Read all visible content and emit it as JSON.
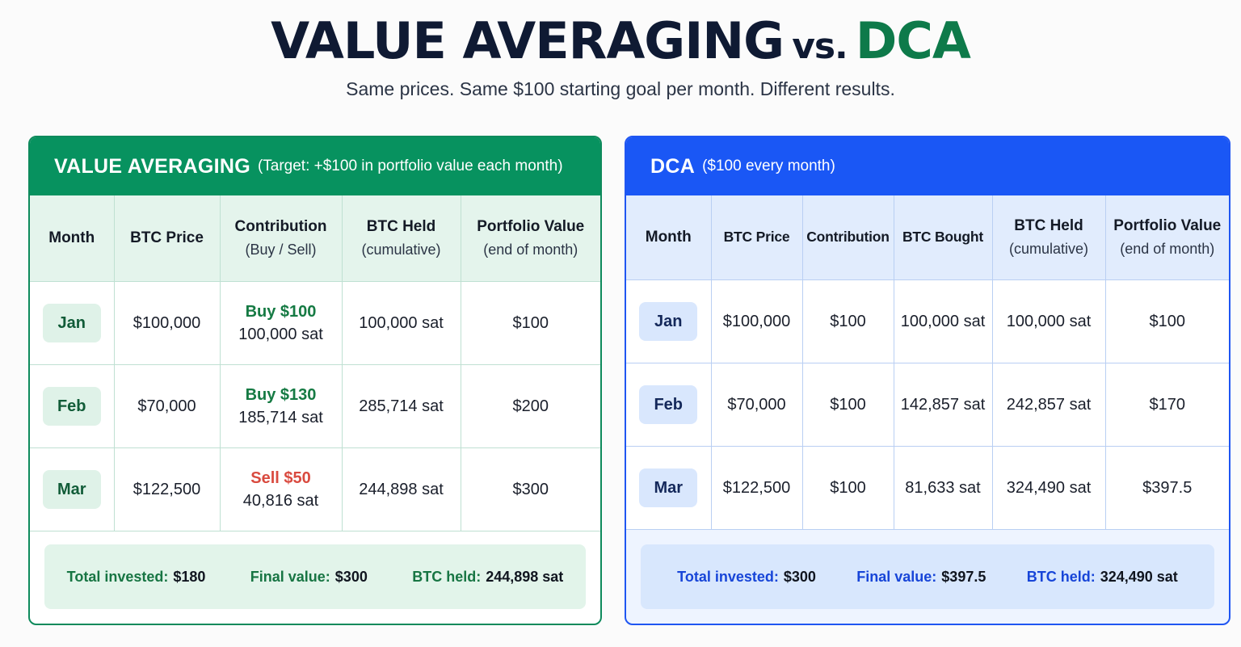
{
  "title": {
    "main": "VALUE AVERAGING",
    "vs": "vs.",
    "dca": "DCA",
    "dca_color": "#0e7a4a"
  },
  "subtitle": "Same prices. Same $100 starting goal per month. Different results.",
  "value_averaging": {
    "header": "VALUE AVERAGING",
    "header_note": "(Target: +$100 in portfolio value each month)",
    "accent_color": "#07925f",
    "columns": [
      {
        "label": "Month",
        "sub": ""
      },
      {
        "label": "BTC Price",
        "sub": ""
      },
      {
        "label": "Contribution",
        "sub": "(Buy / Sell)"
      },
      {
        "label": "BTC Held",
        "sub": "(cumulative)"
      },
      {
        "label": "Portfolio Value",
        "sub": "(end of month)"
      }
    ],
    "rows": [
      {
        "month": "Jan",
        "price": "$100,000",
        "action": "Buy $100",
        "action_type": "buy",
        "sats": "100,000 sat",
        "held": "100,000 sat",
        "value": "$100"
      },
      {
        "month": "Feb",
        "price": "$70,000",
        "action": "Buy $130",
        "action_type": "buy",
        "sats": "185,714 sat",
        "held": "285,714 sat",
        "value": "$200"
      },
      {
        "month": "Mar",
        "price": "$122,500",
        "action": "Sell $50",
        "action_type": "sell",
        "sats": "40,816 sat",
        "held": "244,898 sat",
        "value": "$300"
      }
    ],
    "summary": {
      "invested_label": "Total invested:",
      "invested": "$180",
      "final_label": "Final value:",
      "final": "$300",
      "btc_label": "BTC held:",
      "btc": "244,898 sat"
    }
  },
  "dca": {
    "header": "DCA",
    "header_note": "($100 every month)",
    "accent_color": "#1a57f5",
    "columns": [
      {
        "label": "Month",
        "sub": ""
      },
      {
        "label": "BTC Price",
        "sub": ""
      },
      {
        "label": "Contribution",
        "sub": ""
      },
      {
        "label": "BTC Bought",
        "sub": ""
      },
      {
        "label": "BTC Held",
        "sub": "(cumulative)"
      },
      {
        "label": "Portfolio Value",
        "sub": "(end of month)"
      }
    ],
    "rows": [
      {
        "month": "Jan",
        "price": "$100,000",
        "contribution": "$100",
        "bought": "100,000 sat",
        "held": "100,000 sat",
        "value": "$100"
      },
      {
        "month": "Feb",
        "price": "$70,000",
        "contribution": "$100",
        "bought": "142,857 sat",
        "held": "242,857 sat",
        "value": "$170"
      },
      {
        "month": "Mar",
        "price": "$122,500",
        "contribution": "$100",
        "bought": "81,633 sat",
        "held": "324,490 sat",
        "value": "$397.5"
      }
    ],
    "summary": {
      "invested_label": "Total invested:",
      "invested": "$300",
      "final_label": "Final value:",
      "final": "$397.5",
      "btc_label": "BTC held:",
      "btc": "324,490 sat"
    }
  }
}
